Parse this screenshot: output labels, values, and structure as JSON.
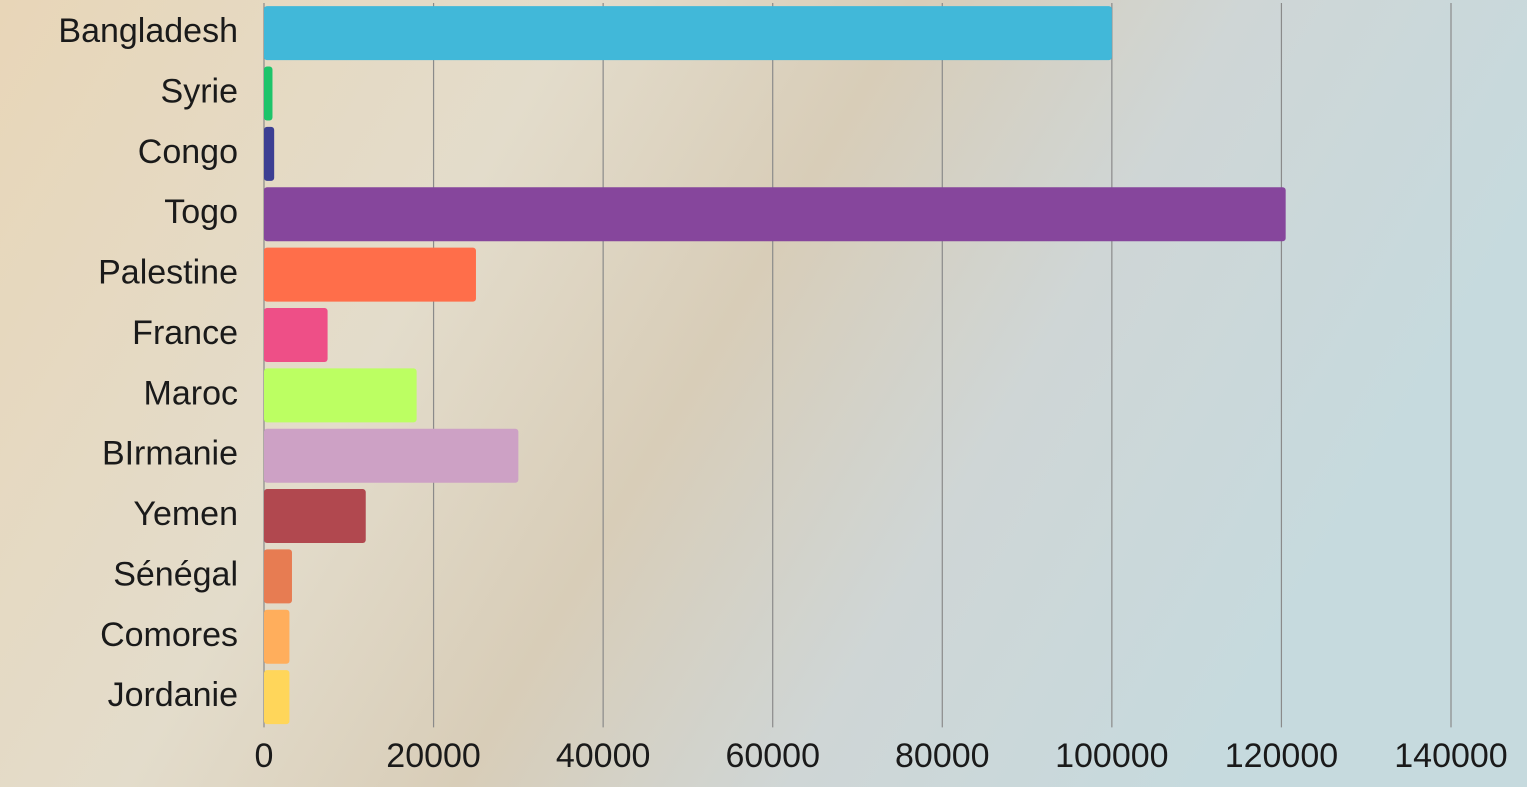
{
  "chart_data": {
    "type": "bar",
    "orientation": "horizontal",
    "categories": [
      "Bangladesh",
      "Syrie",
      "Congo",
      "Togo",
      "Palestine",
      "France",
      "Maroc",
      "BIrmanie",
      "Yemen",
      "Sénégal",
      "Comores",
      "Jordanie"
    ],
    "values": [
      100000,
      1000,
      1200,
      120500,
      25000,
      7500,
      18000,
      30000,
      12000,
      3300,
      3000,
      3000
    ],
    "colors": [
      "#41b8d9",
      "#1dc46a",
      "#3c3f93",
      "#86469c",
      "#ff6e4a",
      "#ee4f87",
      "#bcff62",
      "#cda1c5",
      "#b1484f",
      "#e77c52",
      "#ffae5c",
      "#ffd65a"
    ],
    "xlim": [
      0,
      140000
    ],
    "xticks": [
      0,
      20000,
      40000,
      60000,
      80000,
      100000,
      120000,
      140000
    ],
    "grid": true
  }
}
